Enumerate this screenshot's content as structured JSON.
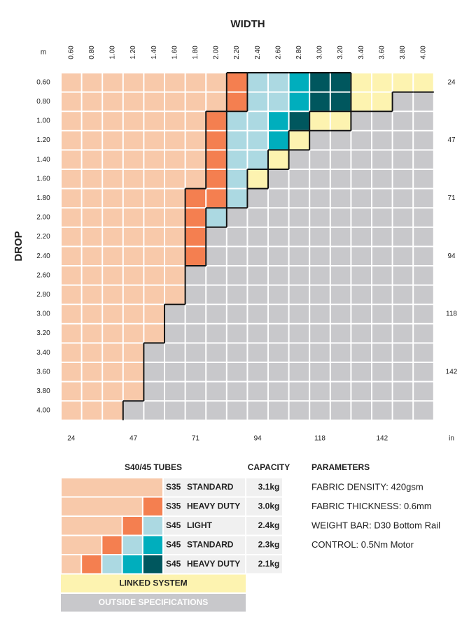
{
  "title_width": "WIDTH",
  "title_drop": "DROP",
  "unit_m": "m",
  "unit_in": "in",
  "widths": [
    "0.60",
    "0.80",
    "1.00",
    "1.20",
    "1.40",
    "1.60",
    "1.80",
    "2.00",
    "2.20",
    "2.40",
    "2.60",
    "2.80",
    "3.00",
    "3.20",
    "3.40",
    "3.60",
    "3.80",
    "4.00"
  ],
  "drops": [
    "0.60",
    "0.80",
    "1.00",
    "1.20",
    "1.40",
    "1.60",
    "1.80",
    "2.00",
    "2.20",
    "2.40",
    "2.60",
    "2.80",
    "3.00",
    "3.20",
    "3.40",
    "3.60",
    "3.80",
    "4.00"
  ],
  "inches_right": [
    "24",
    "47",
    "71",
    "94",
    "118",
    "142"
  ],
  "inches_bottom": [
    "24",
    "47",
    "71",
    "94",
    "118",
    "142"
  ],
  "grid": [
    [
      "#f8c9aa",
      "#f8c9aa",
      "#f8c9aa",
      "#f8c9aa",
      "#f8c9aa",
      "#f8c9aa",
      "#f8c9aa",
      "#f8c9aa",
      "#f47f50",
      "#acd9e2",
      "#acd9e2",
      "#00aebd",
      "#00575e",
      "#00575e",
      "#fdf3b0",
      "#fdf3b0",
      "#fdf3b0",
      "#fdf3b0"
    ],
    [
      "#f8c9aa",
      "#f8c9aa",
      "#f8c9aa",
      "#f8c9aa",
      "#f8c9aa",
      "#f8c9aa",
      "#f8c9aa",
      "#f8c9aa",
      "#f47f50",
      "#acd9e2",
      "#acd9e2",
      "#00aebd",
      "#00575e",
      "#00575e",
      "#fdf3b0",
      "#fdf3b0",
      "#c8c8cb",
      "#c8c8cb"
    ],
    [
      "#f8c9aa",
      "#f8c9aa",
      "#f8c9aa",
      "#f8c9aa",
      "#f8c9aa",
      "#f8c9aa",
      "#f8c9aa",
      "#f47f50",
      "#acd9e2",
      "#acd9e2",
      "#00aebd",
      "#00575e",
      "#fdf3b0",
      "#fdf3b0",
      "#c8c8cb",
      "#c8c8cb",
      "#c8c8cb",
      "#c8c8cb"
    ],
    [
      "#f8c9aa",
      "#f8c9aa",
      "#f8c9aa",
      "#f8c9aa",
      "#f8c9aa",
      "#f8c9aa",
      "#f8c9aa",
      "#f47f50",
      "#acd9e2",
      "#acd9e2",
      "#00aebd",
      "#fdf3b0",
      "#c8c8cb",
      "#c8c8cb",
      "#c8c8cb",
      "#c8c8cb",
      "#c8c8cb",
      "#c8c8cb"
    ],
    [
      "#f8c9aa",
      "#f8c9aa",
      "#f8c9aa",
      "#f8c9aa",
      "#f8c9aa",
      "#f8c9aa",
      "#f8c9aa",
      "#f47f50",
      "#acd9e2",
      "#acd9e2",
      "#fdf3b0",
      "#c8c8cb",
      "#c8c8cb",
      "#c8c8cb",
      "#c8c8cb",
      "#c8c8cb",
      "#c8c8cb",
      "#c8c8cb"
    ],
    [
      "#f8c9aa",
      "#f8c9aa",
      "#f8c9aa",
      "#f8c9aa",
      "#f8c9aa",
      "#f8c9aa",
      "#f8c9aa",
      "#f47f50",
      "#acd9e2",
      "#fdf3b0",
      "#c8c8cb",
      "#c8c8cb",
      "#c8c8cb",
      "#c8c8cb",
      "#c8c8cb",
      "#c8c8cb",
      "#c8c8cb",
      "#c8c8cb"
    ],
    [
      "#f8c9aa",
      "#f8c9aa",
      "#f8c9aa",
      "#f8c9aa",
      "#f8c9aa",
      "#f8c9aa",
      "#f47f50",
      "#f47f50",
      "#acd9e2",
      "#c8c8cb",
      "#c8c8cb",
      "#c8c8cb",
      "#c8c8cb",
      "#c8c8cb",
      "#c8c8cb",
      "#c8c8cb",
      "#c8c8cb",
      "#c8c8cb"
    ],
    [
      "#f8c9aa",
      "#f8c9aa",
      "#f8c9aa",
      "#f8c9aa",
      "#f8c9aa",
      "#f8c9aa",
      "#f47f50",
      "#acd9e2",
      "#c8c8cb",
      "#c8c8cb",
      "#c8c8cb",
      "#c8c8cb",
      "#c8c8cb",
      "#c8c8cb",
      "#c8c8cb",
      "#c8c8cb",
      "#c8c8cb",
      "#c8c8cb"
    ],
    [
      "#f8c9aa",
      "#f8c9aa",
      "#f8c9aa",
      "#f8c9aa",
      "#f8c9aa",
      "#f8c9aa",
      "#f47f50",
      "#c8c8cb",
      "#c8c8cb",
      "#c8c8cb",
      "#c8c8cb",
      "#c8c8cb",
      "#c8c8cb",
      "#c8c8cb",
      "#c8c8cb",
      "#c8c8cb",
      "#c8c8cb",
      "#c8c8cb"
    ],
    [
      "#f8c9aa",
      "#f8c9aa",
      "#f8c9aa",
      "#f8c9aa",
      "#f8c9aa",
      "#f8c9aa",
      "#f47f50",
      "#c8c8cb",
      "#c8c8cb",
      "#c8c8cb",
      "#c8c8cb",
      "#c8c8cb",
      "#c8c8cb",
      "#c8c8cb",
      "#c8c8cb",
      "#c8c8cb",
      "#c8c8cb",
      "#c8c8cb"
    ],
    [
      "#f8c9aa",
      "#f8c9aa",
      "#f8c9aa",
      "#f8c9aa",
      "#f8c9aa",
      "#f8c9aa",
      "#c8c8cb",
      "#c8c8cb",
      "#c8c8cb",
      "#c8c8cb",
      "#c8c8cb",
      "#c8c8cb",
      "#c8c8cb",
      "#c8c8cb",
      "#c8c8cb",
      "#c8c8cb",
      "#c8c8cb",
      "#c8c8cb"
    ],
    [
      "#f8c9aa",
      "#f8c9aa",
      "#f8c9aa",
      "#f8c9aa",
      "#f8c9aa",
      "#f8c9aa",
      "#c8c8cb",
      "#c8c8cb",
      "#c8c8cb",
      "#c8c8cb",
      "#c8c8cb",
      "#c8c8cb",
      "#c8c8cb",
      "#c8c8cb",
      "#c8c8cb",
      "#c8c8cb",
      "#c8c8cb",
      "#c8c8cb"
    ],
    [
      "#f8c9aa",
      "#f8c9aa",
      "#f8c9aa",
      "#f8c9aa",
      "#f8c9aa",
      "#c8c8cb",
      "#c8c8cb",
      "#c8c8cb",
      "#c8c8cb",
      "#c8c8cb",
      "#c8c8cb",
      "#c8c8cb",
      "#c8c8cb",
      "#c8c8cb",
      "#c8c8cb",
      "#c8c8cb",
      "#c8c8cb",
      "#c8c8cb"
    ],
    [
      "#f8c9aa",
      "#f8c9aa",
      "#f8c9aa",
      "#f8c9aa",
      "#f8c9aa",
      "#c8c8cb",
      "#c8c8cb",
      "#c8c8cb",
      "#c8c8cb",
      "#c8c8cb",
      "#c8c8cb",
      "#c8c8cb",
      "#c8c8cb",
      "#c8c8cb",
      "#c8c8cb",
      "#c8c8cb",
      "#c8c8cb",
      "#c8c8cb"
    ],
    [
      "#f8c9aa",
      "#f8c9aa",
      "#f8c9aa",
      "#f8c9aa",
      "#c8c8cb",
      "#c8c8cb",
      "#c8c8cb",
      "#c8c8cb",
      "#c8c8cb",
      "#c8c8cb",
      "#c8c8cb",
      "#c8c8cb",
      "#c8c8cb",
      "#c8c8cb",
      "#c8c8cb",
      "#c8c8cb",
      "#c8c8cb",
      "#c8c8cb"
    ],
    [
      "#f8c9aa",
      "#f8c9aa",
      "#f8c9aa",
      "#f8c9aa",
      "#c8c8cb",
      "#c8c8cb",
      "#c8c8cb",
      "#c8c8cb",
      "#c8c8cb",
      "#c8c8cb",
      "#c8c8cb",
      "#c8c8cb",
      "#c8c8cb",
      "#c8c8cb",
      "#c8c8cb",
      "#c8c8cb",
      "#c8c8cb",
      "#c8c8cb"
    ],
    [
      "#f8c9aa",
      "#f8c9aa",
      "#f8c9aa",
      "#f8c9aa",
      "#c8c8cb",
      "#c8c8cb",
      "#c8c8cb",
      "#c8c8cb",
      "#c8c8cb",
      "#c8c8cb",
      "#c8c8cb",
      "#c8c8cb",
      "#c8c8cb",
      "#c8c8cb",
      "#c8c8cb",
      "#c8c8cb",
      "#c8c8cb",
      "#c8c8cb"
    ],
    [
      "#f8c9aa",
      "#f8c9aa",
      "#f8c9aa",
      "#c8c8cb",
      "#c8c8cb",
      "#c8c8cb",
      "#c8c8cb",
      "#c8c8cb",
      "#c8c8cb",
      "#c8c8cb",
      "#c8c8cb",
      "#c8c8cb",
      "#c8c8cb",
      "#c8c8cb",
      "#c8c8cb",
      "#c8c8cb",
      "#c8c8cb",
      "#c8c8cb"
    ]
  ],
  "legend": {
    "title": "S40/45 TUBES",
    "capacity_title": "CAPACITY",
    "rows": [
      {
        "tube": "S35",
        "name": "STANDARD",
        "capacity": "3.1kg",
        "swatch": [
          "#f8c9aa",
          "#f8c9aa",
          "#f8c9aa",
          "#f8c9aa",
          "#f8c9aa"
        ]
      },
      {
        "tube": "S35",
        "name": "HEAVY DUTY",
        "capacity": "3.0kg",
        "swatch": [
          "#f8c9aa",
          "#f8c9aa",
          "#f8c9aa",
          "#f8c9aa",
          "#f47f50"
        ]
      },
      {
        "tube": "S45",
        "name": "LIGHT",
        "capacity": "2.4kg",
        "swatch": [
          "#f8c9aa",
          "#f8c9aa",
          "#f8c9aa",
          "#f47f50",
          "#acd9e2"
        ]
      },
      {
        "tube": "S45",
        "name": "STANDARD",
        "capacity": "2.3kg",
        "swatch": [
          "#f8c9aa",
          "#f8c9aa",
          "#f47f50",
          "#acd9e2",
          "#00aebd"
        ]
      },
      {
        "tube": "S45",
        "name": "HEAVY DUTY",
        "capacity": "2.1kg",
        "swatch": [
          "#f8c9aa",
          "#f47f50",
          "#acd9e2",
          "#00aebd",
          "#00575e"
        ]
      }
    ],
    "linked": {
      "label": "LINKED SYSTEM",
      "color": "#fdf3b0"
    },
    "outside": {
      "label": "OUTSIDE SPECIFICATIONS",
      "color": "#c8c8cb"
    }
  },
  "parameters": {
    "title": "PARAMETERS",
    "items": [
      "FABRIC DENSITY: 420gsm",
      "FABRIC THICKNESS: 0.6mm",
      "WEIGHT BAR: D30 Bottom Rail",
      "CONTROL: 0.5Nm Motor"
    ]
  }
}
